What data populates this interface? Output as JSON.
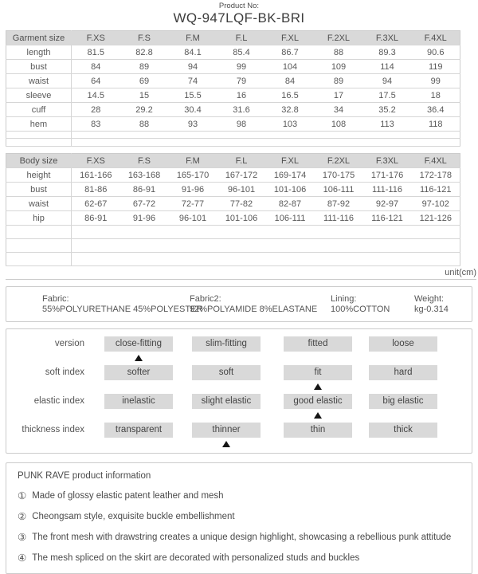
{
  "header": {
    "product_no_label": "Product No:",
    "product_no": "WQ-947LQF-BK-BRI"
  },
  "tables": {
    "unit": "unit(cm)",
    "sizes": [
      "F.XS",
      "F.S",
      "F.M",
      "F.L",
      "F.XL",
      "F.2XL",
      "F.3XL",
      "F.4XL"
    ],
    "garment": {
      "title": "Garment size",
      "rows": [
        {
          "label": "length",
          "values": [
            "81.5",
            "82.8",
            "84.1",
            "85.4",
            "86.7",
            "88",
            "89.3",
            "90.6"
          ]
        },
        {
          "label": "bust",
          "values": [
            "84",
            "89",
            "94",
            "99",
            "104",
            "109",
            "114",
            "119"
          ]
        },
        {
          "label": "waist",
          "values": [
            "64",
            "69",
            "74",
            "79",
            "84",
            "89",
            "94",
            "99"
          ]
        },
        {
          "label": "sleeve",
          "values": [
            "14.5",
            "15",
            "15.5",
            "16",
            "16.5",
            "17",
            "17.5",
            "18"
          ]
        },
        {
          "label": "cuff",
          "values": [
            "28",
            "29.2",
            "30.4",
            "31.6",
            "32.8",
            "34",
            "35.2",
            "36.4"
          ]
        },
        {
          "label": "hem",
          "values": [
            "83",
            "88",
            "93",
            "98",
            "103",
            "108",
            "113",
            "118"
          ]
        }
      ],
      "empty_row_heights": [
        9,
        10
      ]
    },
    "body": {
      "title": "Body size",
      "rows": [
        {
          "label": "height",
          "values": [
            "161-166",
            "163-168",
            "165-170",
            "167-172",
            "169-174",
            "170-175",
            "171-176",
            "172-178"
          ]
        },
        {
          "label": "bust",
          "values": [
            "81-86",
            "86-91",
            "91-96",
            "96-101",
            "101-106",
            "106-111",
            "111-116",
            "116-121"
          ]
        },
        {
          "label": "waist",
          "values": [
            "62-67",
            "67-72",
            "72-77",
            "77-82",
            "82-87",
            "87-92",
            "92-97",
            "97-102"
          ]
        },
        {
          "label": "hip",
          "values": [
            "86-91",
            "91-96",
            "96-101",
            "101-106",
            "106-111",
            "111-116",
            "116-121",
            "121-126"
          ]
        }
      ],
      "empty_row_heights": [
        17,
        17,
        17
      ]
    }
  },
  "fabric": {
    "items": [
      {
        "label": "Fabric:",
        "value": "55%POLYURETHANE 45%POLYESTER"
      },
      {
        "label": "Fabric2:",
        "value": "92%POLYAMIDE 8%ELASTANE"
      },
      {
        "label": "Lining:",
        "value": "100%COTTON"
      },
      {
        "label": "Weight:",
        "value": "kg-0.314"
      }
    ]
  },
  "fit": {
    "rows": [
      {
        "label": "version",
        "options": [
          "close-fitting",
          "slim-fitting",
          "fitted",
          "loose"
        ],
        "selected_index": 0
      },
      {
        "label": "soft index",
        "options": [
          "softer",
          "soft",
          "fit",
          "hard"
        ],
        "selected_index": 2
      },
      {
        "label": "elastic index",
        "options": [
          "inelastic",
          "slight elastic",
          "good elastic",
          "big elastic"
        ],
        "selected_index": 2
      },
      {
        "label": "thickness index",
        "options": [
          "transparent",
          "thinner",
          "thin",
          "thick"
        ],
        "selected_index": 1
      }
    ]
  },
  "product_info": {
    "title": "PUNK RAVE product information",
    "lines": [
      {
        "num": "①",
        "text": "Made of glossy elastic patent leather and mesh"
      },
      {
        "num": "②",
        "text": "Cheongsam style, exquisite buckle embellishment"
      },
      {
        "num": "③",
        "text": "The front mesh with drawstring creates a unique design highlight, showcasing a rebellious punk attitude"
      },
      {
        "num": "④",
        "text": "The mesh spliced on the skirt are decorated with personalized studs and buckles"
      }
    ]
  },
  "colors": {
    "table_header_bg": "#d9d9d9",
    "option_bg": "#d9d9d9",
    "border": "#cccccc",
    "text": "#555555",
    "marker": "#151515"
  }
}
